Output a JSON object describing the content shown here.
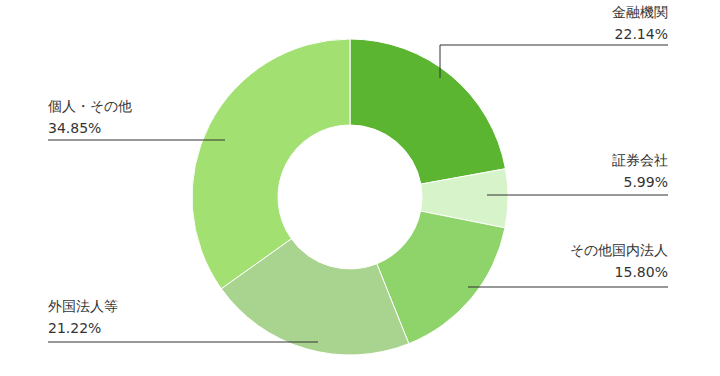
{
  "chart_data": {
    "type": "pie",
    "categories": [
      "金融機関",
      "証券会社",
      "その他国内法人",
      "外国法人等",
      "個人・その他"
    ],
    "values": [
      22.14,
      5.99,
      15.8,
      21.22,
      34.85
    ],
    "value_labels": [
      "22.14%",
      "5.99%",
      "15.80%",
      "21.22%",
      "34.85%"
    ],
    "colors": [
      "#5cb531",
      "#d7f3c9",
      "#8ed46a",
      "#a9d48f",
      "#a2e171"
    ],
    "data_labels": true
  }
}
